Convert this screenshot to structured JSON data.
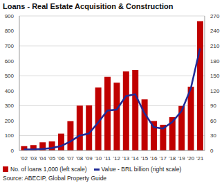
{
  "chart_data": {
    "type": "bar",
    "title": "Loans - Real Estate Acquisition & Construction",
    "source": "Source: ABECIP, Global Property Guide",
    "categories": [
      "'02",
      "'03",
      "'04",
      "'05",
      "'06",
      "'07",
      "'08",
      "'09",
      "'10",
      "'11",
      "'12",
      "'13",
      "'14",
      "'15",
      "'16",
      "'17",
      "'18",
      "'19",
      "'20",
      "'21"
    ],
    "series": [
      {
        "name": "No. of loans 1,000 (left scale)",
        "type": "bar",
        "color": "#c00000",
        "values": [
          29,
          36,
          54,
          61,
          113,
          196,
          300,
          302,
          421,
          493,
          453,
          529,
          538,
          342,
          197,
          172,
          223,
          298,
          427,
          865
        ]
      },
      {
        "name": "Value - BRL billion (right scale)",
        "type": "line",
        "axis": "y2",
        "color": "#1f2a96",
        "values": [
          2,
          2,
          3,
          5,
          9,
          18,
          30,
          34,
          56,
          80,
          82,
          109,
          113,
          75,
          47,
          44,
          57,
          79,
          124,
          205
        ]
      }
    ],
    "ylim": [
      0,
      900
    ],
    "yticks": [
      0,
      100,
      200,
      300,
      400,
      500,
      600,
      700,
      800,
      900
    ],
    "y2lim": [
      0,
      270
    ],
    "y2ticks": [
      0,
      30,
      60,
      90,
      120,
      150,
      180,
      210,
      240,
      270
    ],
    "grid": true,
    "legend": "bottom"
  }
}
